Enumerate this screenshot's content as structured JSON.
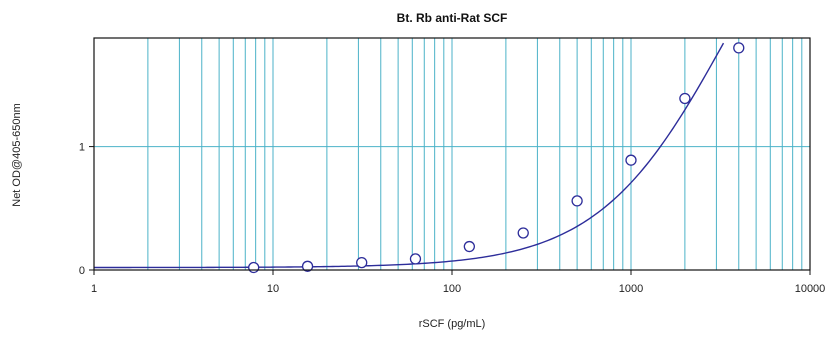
{
  "chart_data": {
    "type": "scatter",
    "title": "Bt. Rb anti-Rat SCF",
    "xlabel": "rSCF (pg/mL)",
    "ylabel": "Net OD@405-650nm",
    "x_scale": "log",
    "xlim": [
      1,
      10000
    ],
    "ylim": [
      0,
      1.88
    ],
    "x_ticks": [
      {
        "value": 1,
        "label": "1"
      },
      {
        "value": 10,
        "label": "10"
      },
      {
        "value": 100,
        "label": "100"
      },
      {
        "value": 1000,
        "label": "1000"
      },
      {
        "value": 10000,
        "label": "10000"
      }
    ],
    "y_ticks": [
      {
        "value": 0,
        "label": "0"
      },
      {
        "value": 1,
        "label": "1"
      }
    ],
    "grid": true,
    "series": [
      {
        "x": [
          7.8,
          15.6,
          31.3,
          62.5,
          125,
          250,
          500,
          1000,
          2000,
          4000
        ],
        "y": [
          0.02,
          0.03,
          0.06,
          0.09,
          0.19,
          0.3,
          0.56,
          0.89,
          1.39,
          1.8
        ]
      }
    ],
    "fit_curve": {
      "type": "4PL",
      "bottom": 0.02,
      "top": 3.8,
      "ec50": 3500,
      "hill": 1.2
    },
    "colors": {
      "grid": "#4bb2c8",
      "curve": "#2d2d9a",
      "marker": "#2d2d9a",
      "axis": "#111111"
    }
  }
}
